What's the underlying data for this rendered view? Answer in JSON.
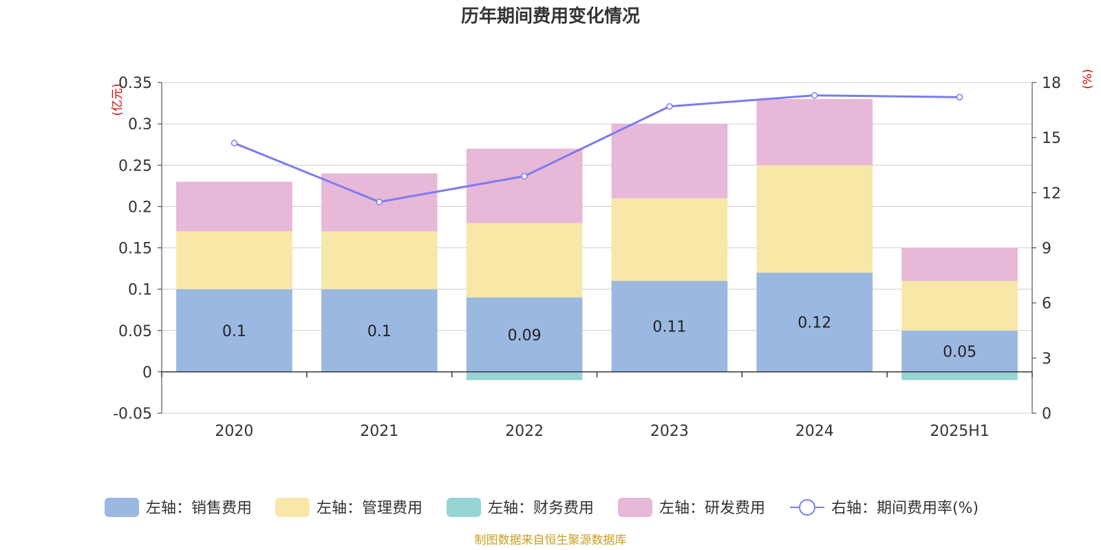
{
  "chart_data": {
    "type": "bar",
    "title": "历年期间费用变化情况",
    "categories": [
      "2020",
      "2021",
      "2022",
      "2023",
      "2024",
      "2025H1"
    ],
    "left_axis": {
      "unit": "(亿元)",
      "ticks": [
        "0.35",
        "0.3",
        "0.25",
        "0.2",
        "0.15",
        "0.1",
        "0.05",
        "0",
        "-0.05"
      ],
      "ylim": [
        -0.05,
        0.35
      ]
    },
    "right_axis": {
      "unit": "(%)",
      "ticks": [
        "18",
        "15",
        "12",
        "9",
        "6",
        "3",
        "0"
      ],
      "ylim": [
        0,
        18
      ]
    },
    "series": [
      {
        "name": "左轴：销售费用",
        "axis": "left",
        "stack": true,
        "color": "#9bb8e0",
        "values": [
          0.1,
          0.1,
          0.09,
          0.11,
          0.12,
          0.05
        ],
        "labels": [
          "0.1",
          "0.1",
          "0.09",
          "0.11",
          "0.12",
          "0.05"
        ]
      },
      {
        "name": "左轴：管理费用",
        "axis": "left",
        "stack": true,
        "color": "#f7e8a8",
        "values": [
          0.07,
          0.07,
          0.09,
          0.1,
          0.13,
          0.06
        ]
      },
      {
        "name": "左轴：财务费用",
        "axis": "left",
        "stack": true,
        "color": "#96d4d4",
        "values": [
          0,
          0,
          -0.01,
          0,
          0,
          -0.01
        ]
      },
      {
        "name": "左轴：研发费用",
        "axis": "left",
        "stack": true,
        "color": "#e8b8d8",
        "values": [
          0.06,
          0.07,
          0.09,
          0.09,
          0.08,
          0.04
        ]
      },
      {
        "name": "右轴：期间费用率(%)",
        "axis": "right",
        "type": "line",
        "color": "#7b7bef",
        "values": [
          14.7,
          11.5,
          12.9,
          16.7,
          17.3,
          17.2
        ]
      }
    ],
    "grid": true,
    "legend_position": "bottom",
    "source": "制图数据来自恒生聚源数据库"
  }
}
